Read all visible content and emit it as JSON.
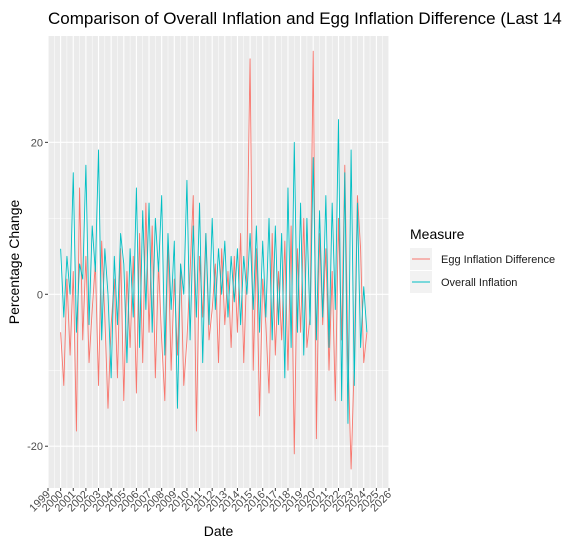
{
  "chart_data": {
    "type": "line",
    "title": "Comparison of Overall Inflation and Egg Inflation Difference (Last 14",
    "xlabel": "Date",
    "ylabel": "Percentage Change",
    "x_ticks": [
      "1999",
      "2000",
      "2001",
      "2002",
      "2003",
      "2004",
      "2005",
      "2006",
      "2007",
      "2008",
      "2009",
      "2010",
      "2011",
      "2012",
      "2013",
      "2014",
      "2015",
      "2016",
      "2017",
      "2018",
      "2019",
      "2020",
      "2021",
      "2022",
      "2023",
      "2024",
      "2025",
      "2026"
    ],
    "xlim": [
      1999.0,
      2026.0
    ],
    "y_ticks": [
      -20,
      0,
      20
    ],
    "ylim": [
      -25.5,
      34.0
    ],
    "grid": true,
    "legend": {
      "title": "Measure",
      "position": "right"
    },
    "colors": {
      "Egg Inflation Difference": "#F8766D",
      "Overall Inflation": "#00BFC4",
      "panel": "#EBEBEB",
      "grid": "#FFFFFF"
    },
    "series": [
      {
        "name": "Egg Inflation Difference",
        "x": [
          2000.0,
          2000.25,
          2000.5,
          2000.75,
          2001.0,
          2001.25,
          2001.5,
          2001.75,
          2002.0,
          2002.25,
          2002.5,
          2002.75,
          2003.0,
          2003.25,
          2003.5,
          2003.75,
          2004.0,
          2004.25,
          2004.5,
          2004.75,
          2005.0,
          2005.25,
          2005.5,
          2005.75,
          2006.0,
          2006.25,
          2006.5,
          2006.75,
          2007.0,
          2007.25,
          2007.5,
          2007.75,
          2008.0,
          2008.25,
          2008.5,
          2008.75,
          2009.0,
          2009.25,
          2009.5,
          2009.75,
          2010.0,
          2010.25,
          2010.5,
          2010.75,
          2011.0,
          2011.25,
          2011.5,
          2011.75,
          2012.0,
          2012.25,
          2012.5,
          2012.75,
          2013.0,
          2013.25,
          2013.5,
          2013.75,
          2014.0,
          2014.25,
          2014.5,
          2014.75,
          2015.0,
          2015.25,
          2015.5,
          2015.75,
          2016.0,
          2016.25,
          2016.5,
          2016.75,
          2017.0,
          2017.25,
          2017.5,
          2017.75,
          2018.0,
          2018.25,
          2018.5,
          2018.75,
          2019.0,
          2019.25,
          2019.5,
          2019.75,
          2020.0,
          2020.25,
          2020.5,
          2020.75,
          2021.0,
          2021.25,
          2021.5,
          2021.75,
          2022.0,
          2022.25,
          2022.5,
          2022.75,
          2023.0,
          2023.25,
          2023.5,
          2023.75,
          2024.0,
          2024.25
        ],
        "y": [
          -5,
          -12,
          2,
          -8,
          3,
          -18,
          14,
          -6,
          5,
          -9,
          -2,
          4,
          -12,
          7,
          -3,
          -15,
          -4,
          2,
          -11,
          6,
          -14,
          3,
          -7,
          5,
          -13,
          8,
          -9,
          12,
          -5,
          9,
          -11,
          4,
          -6,
          -14,
          7,
          -10,
          2,
          -8,
          4,
          -12,
          -6,
          3,
          13,
          -18,
          5,
          -3,
          8,
          -6,
          -2,
          4,
          -9,
          6,
          -4,
          3,
          -7,
          5,
          -5,
          8,
          -9,
          4,
          31,
          -10,
          6,
          -16,
          2,
          -4,
          -13,
          8,
          -8,
          3,
          -6,
          7,
          -10,
          9,
          -21,
          6,
          -5,
          10,
          -7,
          -3,
          32,
          -19,
          8,
          -4,
          6,
          -10,
          3,
          -14,
          10,
          -6,
          17,
          -8,
          -23,
          -9,
          13,
          6,
          -9,
          -5
        ]
      },
      {
        "name": "Overall Inflation",
        "x": [
          2000.0,
          2000.25,
          2000.5,
          2000.75,
          2001.0,
          2001.25,
          2001.5,
          2001.75,
          2002.0,
          2002.25,
          2002.5,
          2002.75,
          2003.0,
          2003.25,
          2003.5,
          2003.75,
          2004.0,
          2004.25,
          2004.5,
          2004.75,
          2005.0,
          2005.25,
          2005.5,
          2005.75,
          2006.0,
          2006.25,
          2006.5,
          2006.75,
          2007.0,
          2007.25,
          2007.5,
          2007.75,
          2008.0,
          2008.25,
          2008.5,
          2008.75,
          2009.0,
          2009.25,
          2009.5,
          2009.75,
          2010.0,
          2010.25,
          2010.5,
          2010.75,
          2011.0,
          2011.25,
          2011.5,
          2011.75,
          2012.0,
          2012.25,
          2012.5,
          2012.75,
          2013.0,
          2013.25,
          2013.5,
          2013.75,
          2014.0,
          2014.25,
          2014.5,
          2014.75,
          2015.0,
          2015.25,
          2015.5,
          2015.75,
          2016.0,
          2016.25,
          2016.5,
          2016.75,
          2017.0,
          2017.25,
          2017.5,
          2017.75,
          2018.0,
          2018.25,
          2018.5,
          2018.75,
          2019.0,
          2019.25,
          2019.5,
          2019.75,
          2020.0,
          2020.25,
          2020.5,
          2020.75,
          2021.0,
          2021.25,
          2021.5,
          2021.75,
          2022.0,
          2022.25,
          2022.5,
          2022.75,
          2023.0,
          2023.25,
          2023.5,
          2023.75,
          2024.0,
          2024.25
        ],
        "y": [
          6,
          -3,
          5,
          0,
          16,
          -5,
          4,
          2,
          17,
          -4,
          9,
          3,
          19,
          -6,
          6,
          0,
          -11,
          5,
          -4,
          8,
          4,
          -9,
          6,
          -3,
          14,
          -7,
          11,
          -2,
          12,
          -5,
          10,
          3,
          13,
          -8,
          8,
          -2,
          7,
          -15,
          4,
          0,
          15,
          -6,
          9,
          -3,
          12,
          -9,
          8,
          -4,
          10,
          -2,
          6,
          0,
          7,
          -3,
          5,
          -1,
          6,
          -4,
          5,
          0,
          8,
          -2,
          9,
          -5,
          7,
          -3,
          10,
          -6,
          9,
          -4,
          8,
          -11,
          14,
          -7,
          20,
          -5,
          12,
          -8,
          10,
          -4,
          18,
          -6,
          11,
          -3,
          13,
          -7,
          12,
          -2,
          23,
          -14,
          16,
          -17,
          19,
          -12,
          12,
          -7,
          1,
          -5
        ]
      }
    ]
  }
}
